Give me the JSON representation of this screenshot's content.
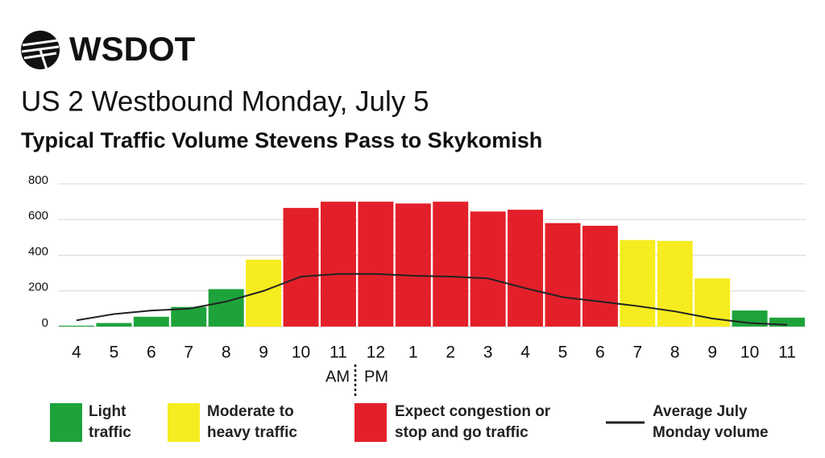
{
  "logo": "WSDOT",
  "chart_data": {
    "type": "bar",
    "title": "US 2 Westbound Monday, July 5",
    "subtitle": "Typical Traffic Volume Stevens Pass to Skykomish",
    "categories": [
      "4",
      "5",
      "6",
      "7",
      "8",
      "9",
      "10",
      "11",
      "12",
      "1",
      "2",
      "3",
      "4",
      "5",
      "6",
      "7",
      "8",
      "9",
      "10",
      "11"
    ],
    "values": [
      5,
      20,
      55,
      110,
      210,
      375,
      665,
      700,
      700,
      690,
      700,
      645,
      655,
      580,
      565,
      485,
      480,
      270,
      90,
      50
    ],
    "colors": [
      "#1ea33b",
      "#1ea33b",
      "#1ea33b",
      "#1ea33b",
      "#1ea33b",
      "#f6ec1f",
      "#e3202a",
      "#e3202a",
      "#e3202a",
      "#e3202a",
      "#e3202a",
      "#e3202a",
      "#e3202a",
      "#e3202a",
      "#e3202a",
      "#f6ec1f",
      "#f6ec1f",
      "#f6ec1f",
      "#1ea33b",
      "#1ea33b"
    ],
    "line": {
      "name": "Average July Monday volume",
      "color": "#222222",
      "values": [
        35,
        70,
        90,
        100,
        140,
        200,
        280,
        295,
        295,
        285,
        280,
        270,
        215,
        165,
        140,
        115,
        85,
        45,
        20,
        10
      ]
    },
    "legend": [
      {
        "name": "Light traffic",
        "color": "#1ea33b"
      },
      {
        "name": "Moderate to heavy traffic",
        "color": "#f6ec1f"
      },
      {
        "name": "Expect congestion or stop and go traffic",
        "color": "#e3202a"
      }
    ],
    "period_labels": [
      "AM",
      "PM"
    ],
    "ylim": [
      0,
      800
    ],
    "yticks": [
      0,
      200,
      400,
      600,
      800
    ],
    "grid": true
  }
}
